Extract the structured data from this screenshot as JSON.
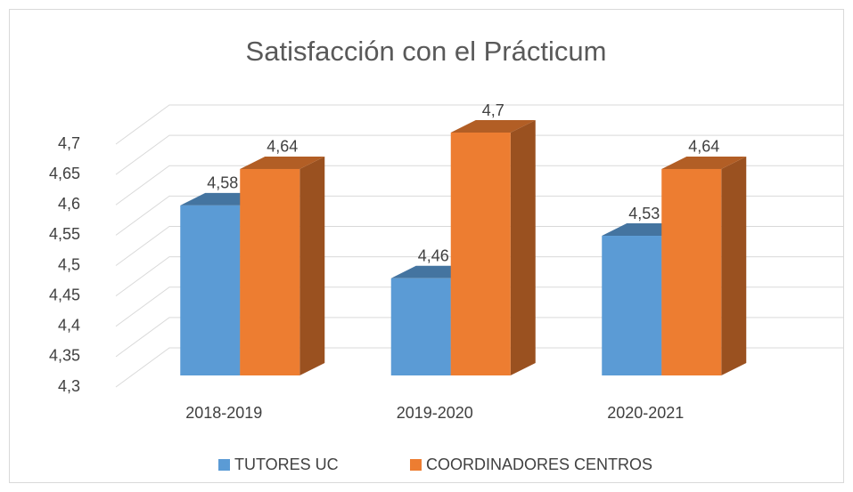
{
  "chart_data": {
    "type": "bar3d",
    "title": "Satisfacción con el Prácticum",
    "categories": [
      "2018-2019",
      "2019-2020",
      "2020-2021"
    ],
    "series": [
      {
        "name": "TUTORES UC",
        "color": "#5b9bd5",
        "values": [
          4.58,
          4.46,
          4.53
        ],
        "value_labels": [
          "4,58",
          "4,46",
          "4,53"
        ]
      },
      {
        "name": "COORDINADORES CENTROS",
        "color": "#ed7d31",
        "values": [
          4.64,
          4.7,
          4.64
        ],
        "value_labels": [
          "4,64",
          "4,7",
          "4,64"
        ]
      }
    ],
    "ylim": [
      4.3,
      4.7
    ],
    "yticks": [
      {
        "value": 4.3,
        "label": "4,3"
      },
      {
        "value": 4.35,
        "label": "4,35"
      },
      {
        "value": 4.4,
        "label": "4,4"
      },
      {
        "value": 4.45,
        "label": "4,45"
      },
      {
        "value": 4.5,
        "label": "4,5"
      },
      {
        "value": 4.55,
        "label": "4,55"
      },
      {
        "value": 4.6,
        "label": "4,6"
      },
      {
        "value": 4.65,
        "label": "4,65"
      },
      {
        "value": 4.7,
        "label": "4,7"
      }
    ],
    "grid": true,
    "legend": "bottom"
  }
}
